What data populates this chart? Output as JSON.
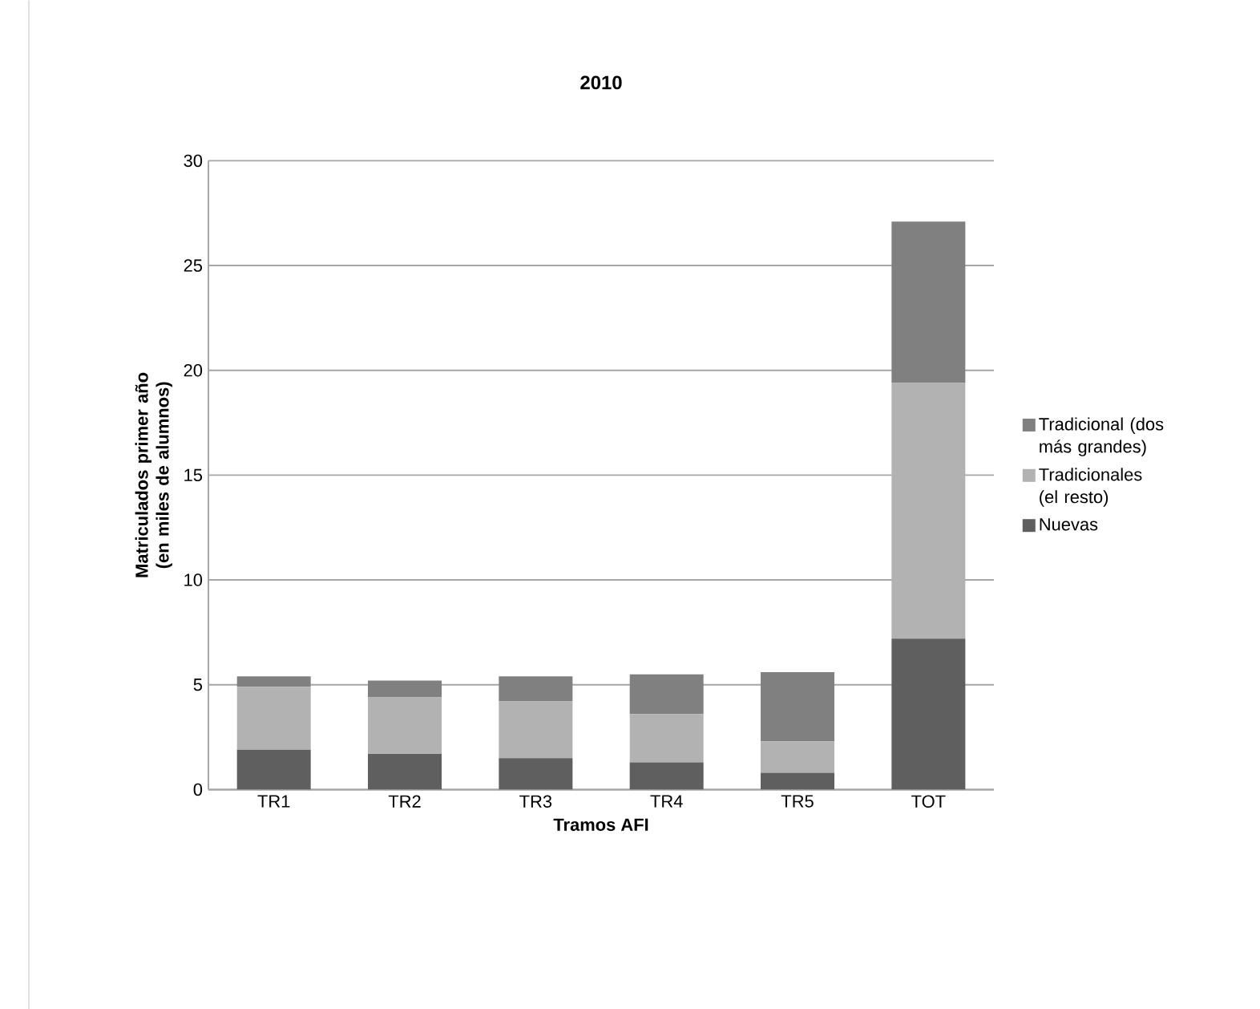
{
  "chart_data": {
    "type": "bar",
    "title": "2010",
    "xlabel": "Tramos AFI",
    "ylabel": "Matriculados primer año (en miles de alumnos)",
    "categories": [
      "TR1",
      "TR2",
      "TR3",
      "TR4",
      "TR5",
      "TOT"
    ],
    "series": [
      {
        "name": "Nuevas",
        "color": "#5f5f5f",
        "values": [
          1.9,
          1.7,
          1.5,
          1.3,
          0.8,
          7.2
        ]
      },
      {
        "name": "Tradicionales (el resto)",
        "color": "#b2b2b2",
        "values": [
          3.0,
          2.7,
          2.7,
          2.3,
          1.5,
          12.2
        ]
      },
      {
        "name": "Tradicional (dos más grandes)",
        "color": "#808080",
        "values": [
          0.5,
          0.8,
          1.2,
          1.9,
          3.3,
          7.7
        ]
      }
    ],
    "stacked": true,
    "ylim": [
      0,
      30
    ],
    "yticks": [
      0,
      5,
      10,
      15,
      20,
      25,
      30
    ],
    "grid": "y",
    "legend": "right"
  }
}
